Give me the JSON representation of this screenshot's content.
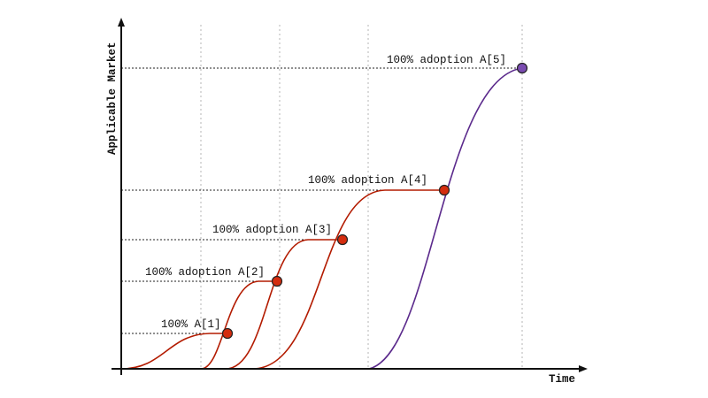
{
  "diagram": {
    "y_axis_label": "Applicable Market",
    "x_axis_label": "Time",
    "annotations": [
      {
        "text": "100% A[1]",
        "stage": 1
      },
      {
        "text": "100% adoption A[2]",
        "stage": 2
      },
      {
        "text": "100% adoption A[3]",
        "stage": 3
      },
      {
        "text": "100% adoption A[4]",
        "stage": 4
      },
      {
        "text": "100% adoption A[5]",
        "stage": 5
      }
    ],
    "colors": {
      "curve": "#b31b00",
      "final_curve": "#5b2a8c",
      "dot": "#d42c0e",
      "final_dot": "#7a4bb0",
      "grid": "#aaaaaa"
    }
  }
}
